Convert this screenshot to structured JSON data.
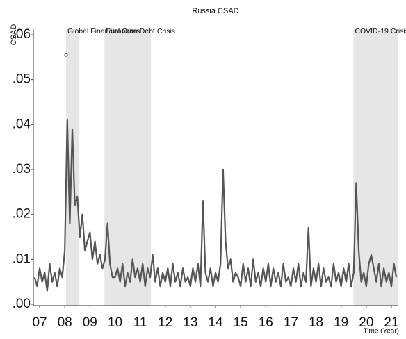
{
  "chart_data": {
    "type": "line",
    "title": "Russia CSAD",
    "ylabel": "CSAD",
    "xlabel": "Time (Year)",
    "xlim": [
      2006.75,
      2021.25
    ],
    "ylim": [
      0,
      0.06
    ],
    "xticks": [
      {
        "value": 2007,
        "label": "07"
      },
      {
        "value": 2008,
        "label": "08"
      },
      {
        "value": 2009,
        "label": "09"
      },
      {
        "value": 2010,
        "label": "10"
      },
      {
        "value": 2011,
        "label": "11"
      },
      {
        "value": 2012,
        "label": "12"
      },
      {
        "value": 2013,
        "label": "13"
      },
      {
        "value": 2014,
        "label": "14"
      },
      {
        "value": 2015,
        "label": "15"
      },
      {
        "value": 2016,
        "label": "16"
      },
      {
        "value": 2017,
        "label": "17"
      },
      {
        "value": 2018,
        "label": "18"
      },
      {
        "value": 2019,
        "label": "19"
      },
      {
        "value": 2020,
        "label": "20"
      },
      {
        "value": 2021,
        "label": "21"
      }
    ],
    "yticks": [
      {
        "value": 0,
        "label": ".00"
      },
      {
        "value": 0.01,
        "label": ".01"
      },
      {
        "value": 0.02,
        "label": ".02"
      },
      {
        "value": 0.03,
        "label": ".03"
      },
      {
        "value": 0.04,
        "label": ".04"
      },
      {
        "value": 0.05,
        "label": ".05"
      },
      {
        "value": 0.06,
        "label": ".06"
      }
    ],
    "annotations": [
      {
        "label": "Global Financial Crisis",
        "start": 2008.05,
        "end": 2008.58
      },
      {
        "label": "European Debt Crisis",
        "start": 2009.58,
        "end": 2011.43
      },
      {
        "label": "COVID-19 Crisis",
        "start": 2019.49,
        "end": 2021.25
      }
    ],
    "points": [
      {
        "x": 2008.05,
        "y": 0.0555
      }
    ],
    "series": [
      {
        "color": "#555555",
        "x": [
          2006.8,
          2006.9,
          2007,
          2007.1,
          2007.2,
          2007.3,
          2007.4,
          2007.5,
          2007.6,
          2007.7,
          2007.8,
          2007.9,
          2008,
          2008.1,
          2008.2,
          2008.3,
          2008.4,
          2008.5,
          2008.6,
          2008.7,
          2008.8,
          2008.9,
          2009,
          2009.1,
          2009.2,
          2009.3,
          2009.4,
          2009.5,
          2009.6,
          2009.7,
          2009.8,
          2009.9,
          2010,
          2010.1,
          2010.2,
          2010.3,
          2010.4,
          2010.5,
          2010.6,
          2010.7,
          2010.8,
          2010.9,
          2011,
          2011.1,
          2011.2,
          2011.3,
          2011.4,
          2011.5,
          2011.6,
          2011.7,
          2011.8,
          2011.9,
          2012,
          2012.1,
          2012.2,
          2012.3,
          2012.4,
          2012.5,
          2012.6,
          2012.7,
          2012.8,
          2012.9,
          2013,
          2013.1,
          2013.2,
          2013.3,
          2013.4,
          2013.5,
          2013.6,
          2013.7,
          2013.8,
          2013.9,
          2014,
          2014.1,
          2014.2,
          2014.3,
          2014.4,
          2014.5,
          2014.6,
          2014.7,
          2014.8,
          2014.9,
          2015,
          2015.1,
          2015.2,
          2015.3,
          2015.4,
          2015.5,
          2015.6,
          2015.7,
          2015.8,
          2015.9,
          2016,
          2016.1,
          2016.2,
          2016.3,
          2016.4,
          2016.5,
          2016.6,
          2016.7,
          2016.8,
          2016.9,
          2017,
          2017.1,
          2017.2,
          2017.3,
          2017.4,
          2017.5,
          2017.6,
          2017.7,
          2017.8,
          2017.9,
          2018,
          2018.1,
          2018.2,
          2018.3,
          2018.4,
          2018.5,
          2018.6,
          2018.7,
          2018.8,
          2018.9,
          2019,
          2019.1,
          2019.2,
          2019.3,
          2019.4,
          2019.5,
          2019.6,
          2019.7,
          2019.8,
          2019.9,
          2020,
          2020.1,
          2020.2,
          2020.3,
          2020.4,
          2020.5,
          2020.6,
          2020.7,
          2020.8,
          2020.9,
          2021,
          2021.1,
          2021.2
        ],
        "values": [
          0.006,
          0.004,
          0.008,
          0.005,
          0.007,
          0.003,
          0.009,
          0.005,
          0.007,
          0.004,
          0.008,
          0.006,
          0.012,
          0.041,
          0.018,
          0.039,
          0.022,
          0.024,
          0.015,
          0.02,
          0.012,
          0.014,
          0.016,
          0.01,
          0.014,
          0.009,
          0.011,
          0.008,
          0.01,
          0.018,
          0.009,
          0.006,
          0.006,
          0.008,
          0.005,
          0.009,
          0.004,
          0.007,
          0.005,
          0.01,
          0.006,
          0.008,
          0.005,
          0.009,
          0.004,
          0.008,
          0.006,
          0.011,
          0.005,
          0.008,
          0.004,
          0.007,
          0.005,
          0.008,
          0.004,
          0.009,
          0.005,
          0.007,
          0.004,
          0.008,
          0.005,
          0.006,
          0.004,
          0.008,
          0.005,
          0.009,
          0.004,
          0.023,
          0.007,
          0.005,
          0.008,
          0.004,
          0.007,
          0.005,
          0.009,
          0.03,
          0.014,
          0.008,
          0.01,
          0.005,
          0.007,
          0.006,
          0.004,
          0.009,
          0.005,
          0.008,
          0.004,
          0.01,
          0.005,
          0.007,
          0.004,
          0.008,
          0.005,
          0.009,
          0.004,
          0.008,
          0.005,
          0.007,
          0.004,
          0.009,
          0.005,
          0.006,
          0.004,
          0.008,
          0.005,
          0.009,
          0.004,
          0.007,
          0.005,
          0.017,
          0.004,
          0.008,
          0.005,
          0.009,
          0.004,
          0.008,
          0.005,
          0.006,
          0.004,
          0.009,
          0.005,
          0.007,
          0.004,
          0.008,
          0.005,
          0.009,
          0.004,
          0.007,
          0.027,
          0.012,
          0.005,
          0.007,
          0.004,
          0.009,
          0.011,
          0.008,
          0.005,
          0.009,
          0.004,
          0.008,
          0.005,
          0.007,
          0.004,
          0.009,
          0.006
        ]
      }
    ]
  }
}
